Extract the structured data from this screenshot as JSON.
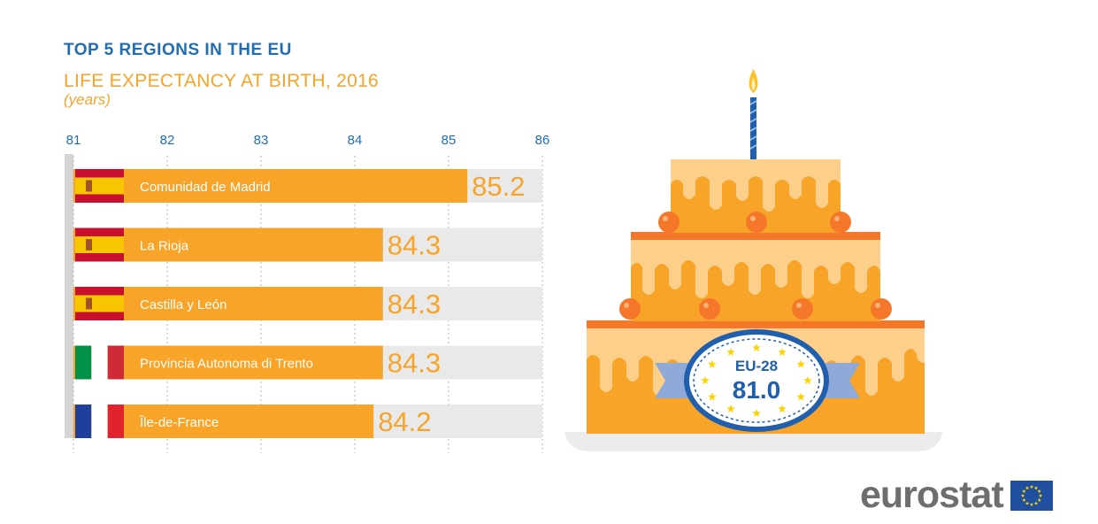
{
  "header": {
    "title": "TOP 5 REGIONS IN THE EU",
    "subtitle": "LIFE EXPECTANCY AT BIRTH, 2016",
    "unit": "(years)"
  },
  "colors": {
    "title": "#1f6eb3",
    "subtitle": "#f7a428",
    "bar": "#f7a428",
    "track": "#e9e9e9",
    "axis_label": "#1f6eb3",
    "value_label": "#f7a428",
    "cake_light": "#fcd08a",
    "cake_mid": "#f9b24c",
    "cake_dark": "#f7a428",
    "cake_band": "#f5772a",
    "badge_blue": "#1f5fae",
    "ribbon": "#8fa9d9"
  },
  "chart_data": {
    "type": "bar",
    "orientation": "horizontal",
    "title": "TOP 5 REGIONS IN THE EU",
    "subtitle": "LIFE EXPECTANCY AT BIRTH, 2016",
    "xlabel": "(years)",
    "xlim": [
      81,
      86
    ],
    "xticks": [
      81,
      82,
      83,
      84,
      85,
      86
    ],
    "categories": [
      "Comunidad de Madrid",
      "La Rioja",
      "Castilla y León",
      "Provincia Autonoma di Trento",
      "Île-de-France"
    ],
    "countries": [
      "ES",
      "ES",
      "ES",
      "IT",
      "FR"
    ],
    "values": [
      85.2,
      84.3,
      84.3,
      84.3,
      84.2
    ],
    "value_labels": [
      "85.2",
      "84.3",
      "84.3",
      "84.3",
      "84.2"
    ],
    "reference": {
      "label": "EU-28",
      "value": 81.0,
      "value_label": "81.0"
    }
  },
  "brand": {
    "name": "eurostat"
  }
}
